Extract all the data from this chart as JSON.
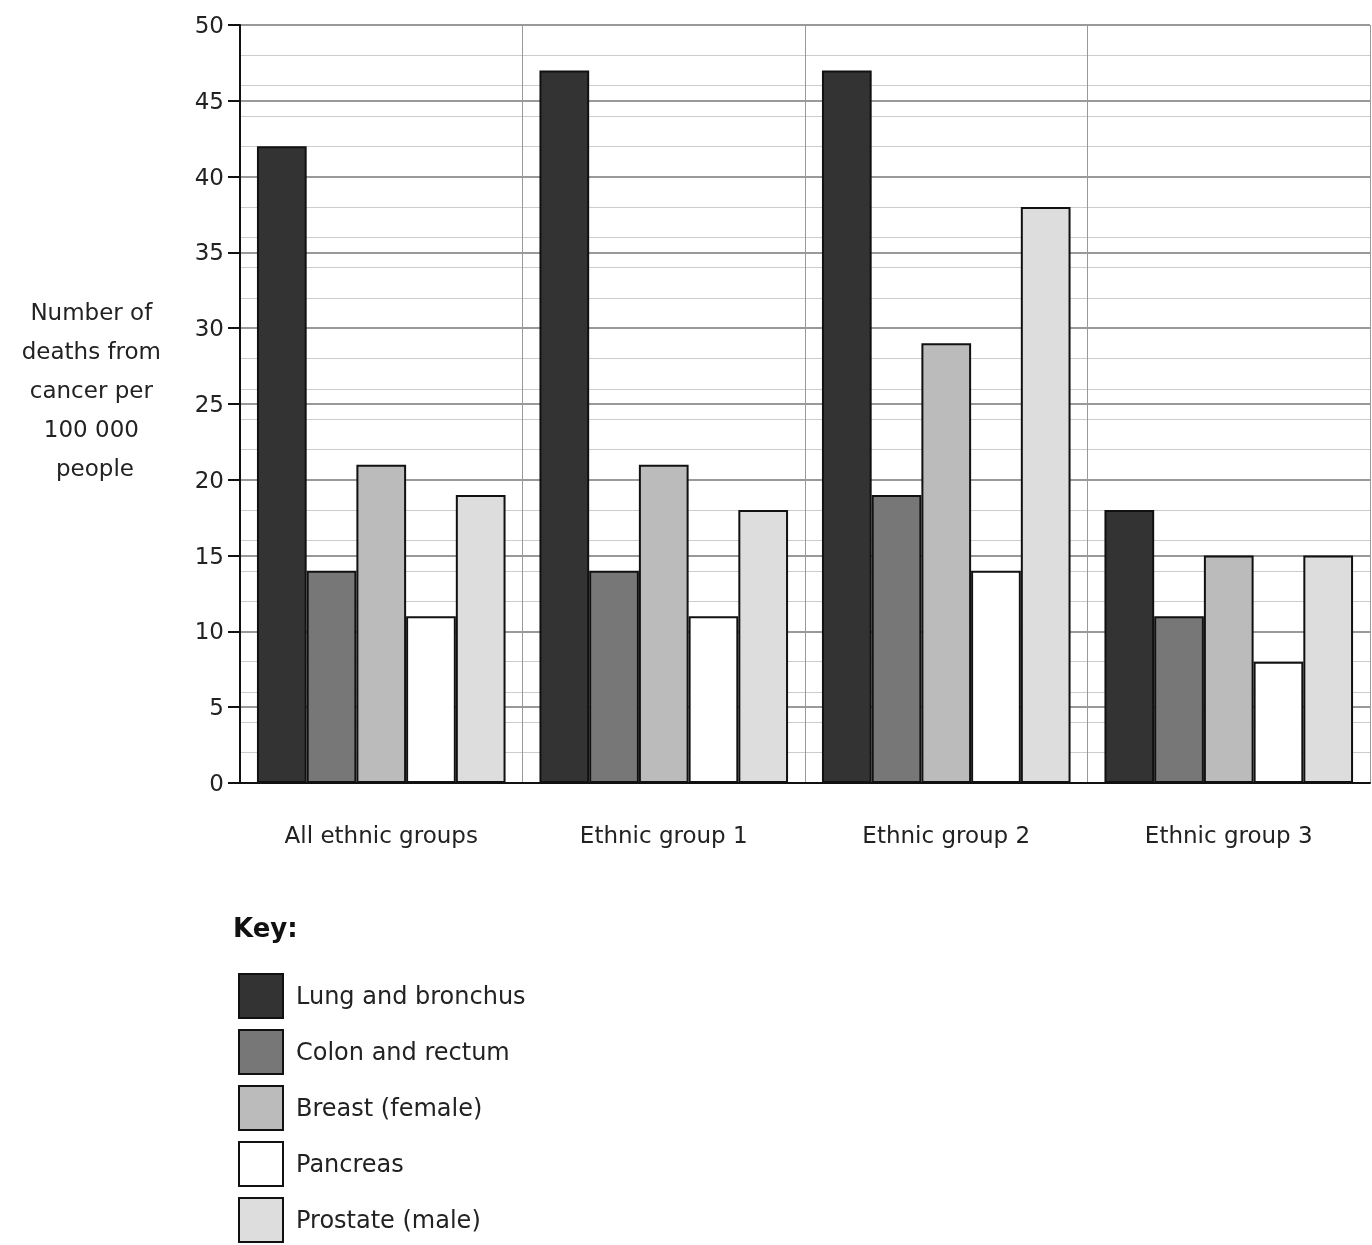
{
  "chart_data": {
    "type": "bar",
    "ylabel": "Number of deaths from cancer per 100 000 people",
    "legend_title": "Key:",
    "categories": [
      "All ethnic groups",
      "Ethnic group 1",
      "Ethnic group 2",
      "Ethnic group 3"
    ],
    "series": [
      {
        "name": "Lung and bronchus",
        "color": "#333333",
        "values": [
          42,
          47,
          47,
          18
        ]
      },
      {
        "name": "Colon and rectum",
        "color": "#777777",
        "values": [
          14,
          14,
          19,
          11
        ]
      },
      {
        "name": "Breast (female)",
        "color": "#bbbbbb",
        "values": [
          21,
          21,
          29,
          15
        ]
      },
      {
        "name": "Pancreas",
        "color": "#ffffff",
        "values": [
          11,
          11,
          14,
          8
        ]
      },
      {
        "name": "Prostate (male)",
        "color": "#dddddd",
        "values": [
          19,
          18,
          38,
          15
        ]
      }
    ],
    "ylim": [
      0,
      50
    ],
    "yticks": [
      0,
      5,
      10,
      15,
      20,
      25,
      30,
      35,
      40,
      45,
      50
    ],
    "grid": true,
    "legend": "bottom left"
  }
}
